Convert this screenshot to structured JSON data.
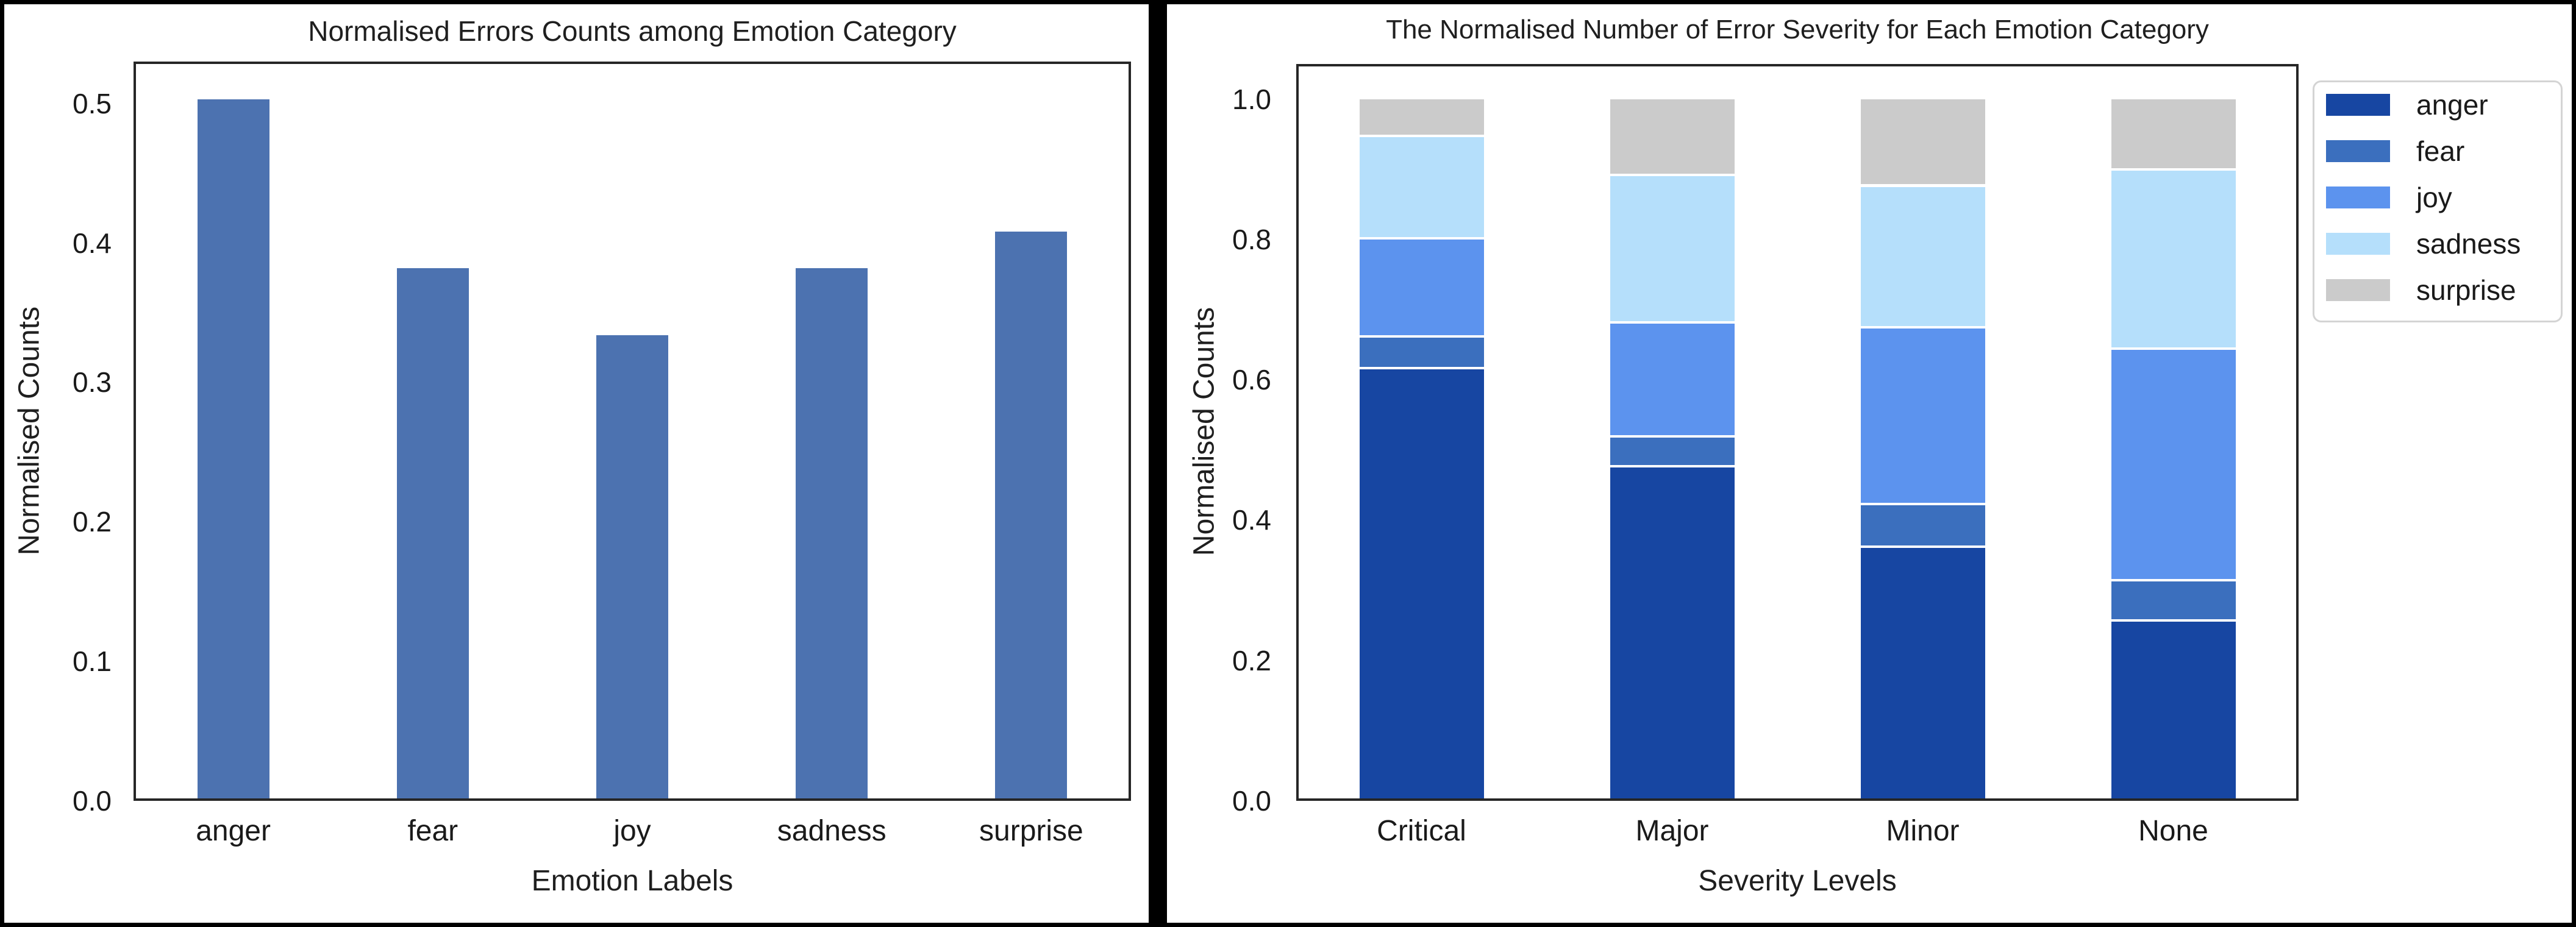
{
  "figure": {
    "background": "#ffffff",
    "frame_color": "#000000",
    "divider_color": "#000000",
    "spine_color": "#262626",
    "text_color": "#1a1a1a"
  },
  "chart_data": [
    {
      "type": "bar",
      "title": "Normalised Errors Counts among Emotion Category",
      "xlabel": "Emotion Labels",
      "ylabel": "Normalised Counts",
      "categories": [
        "anger",
        "fear",
        "joy",
        "sadness",
        "surprise"
      ],
      "values": [
        0.503,
        0.382,
        0.334,
        0.382,
        0.408
      ],
      "bar_color": "#4C72B0",
      "ylim": [
        0,
        0.53
      ],
      "yticks": [
        "0.0",
        "0.1",
        "0.2",
        "0.3",
        "0.4",
        "0.5"
      ],
      "grid": false,
      "legend": null
    },
    {
      "type": "stacked-bar",
      "title": "The Normalised Number of Error Severity for Each Emotion Category",
      "xlabel": "Severity Levels",
      "ylabel": "Normalised Counts",
      "categories": [
        "Critical",
        "Major",
        "Minor",
        "None"
      ],
      "series": [
        {
          "name": "anger",
          "color": "#1746A2",
          "values": [
            0.615,
            0.475,
            0.36,
            0.255
          ]
        },
        {
          "name": "fear",
          "color": "#3B6FBE",
          "values": [
            0.045,
            0.043,
            0.061,
            0.058
          ]
        },
        {
          "name": "joy",
          "color": "#5C93EE",
          "values": [
            0.14,
            0.162,
            0.252,
            0.33
          ]
        },
        {
          "name": "sadness",
          "color": "#B5DFFB",
          "values": [
            0.146,
            0.21,
            0.202,
            0.255
          ]
        },
        {
          "name": "surprise",
          "color": "#CBCBCB",
          "values": [
            0.054,
            0.11,
            0.125,
            0.102
          ]
        }
      ],
      "ylim": [
        0,
        1.05
      ],
      "yticks": [
        "0.0",
        "0.2",
        "0.4",
        "0.6",
        "0.8",
        "1.0"
      ],
      "legend_position": "upper right outside",
      "grid": false
    }
  ]
}
